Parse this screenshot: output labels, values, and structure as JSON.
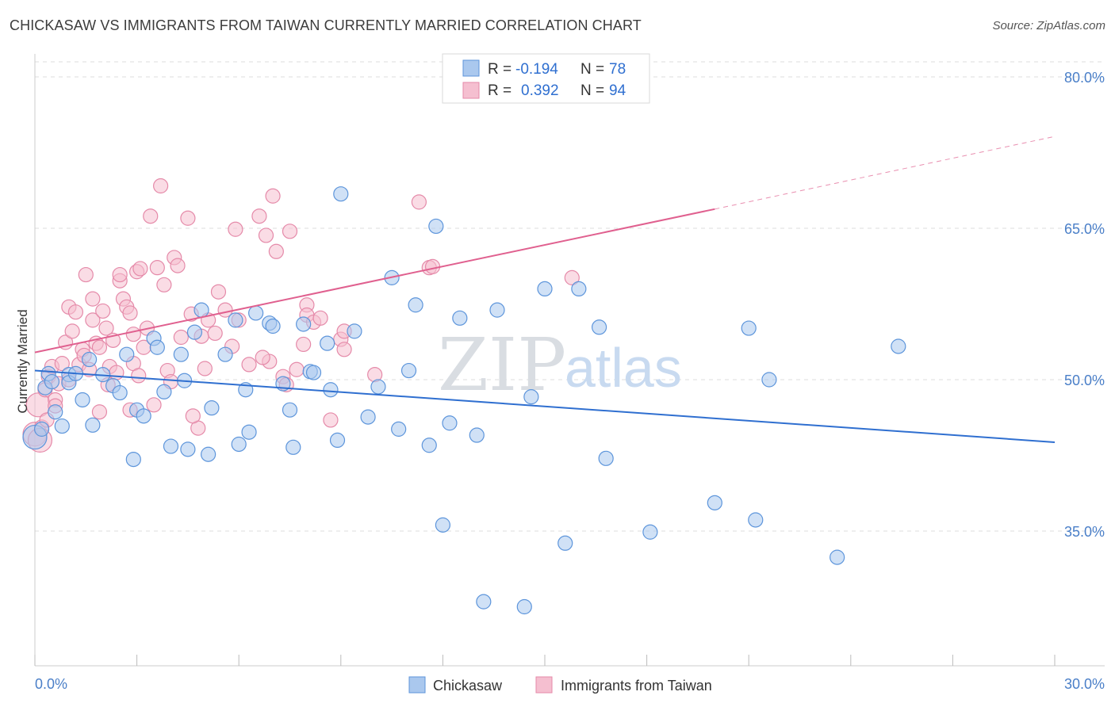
{
  "title": "CHICKASAW VS IMMIGRANTS FROM TAIWAN CURRENTLY MARRIED CORRELATION CHART",
  "source": "Source: ZipAtlas.com",
  "watermark": {
    "zip": "ZIP",
    "atlas": "atlas"
  },
  "legend": {
    "rows": [
      {
        "r_label": "R =",
        "r_value": "-0.194",
        "n_label": "N =",
        "n_value": "78"
      },
      {
        "r_label": "R =",
        "r_value": "0.392",
        "n_label": "N =",
        "n_value": "94"
      }
    ]
  },
  "bottom_legend": [
    "Chickasaw",
    "Immigrants from Taiwan"
  ],
  "colors": {
    "blue_fill": "#aac8ee",
    "blue_stroke": "#5d95db",
    "blue_line": "#2f6fd0",
    "pink_fill": "#f5bfd0",
    "pink_stroke": "#e58aa9",
    "pink_line": "#e0608f",
    "grid": "#dcdcdc",
    "tick_label": "#4a7fc8"
  },
  "chart_data": {
    "type": "scatter",
    "title": "CHICKASAW VS IMMIGRANTS FROM TAIWAN CURRENTLY MARRIED CORRELATION CHART",
    "xlabel": "",
    "ylabel": "Currently Married",
    "xlim": [
      0,
      30
    ],
    "ylim": [
      20,
      83
    ],
    "x_tick_labels": [
      "0.0%",
      "30.0%"
    ],
    "y_ticks": [
      35,
      50,
      65,
      80
    ],
    "y_tick_labels": [
      "35.0%",
      "50.0%",
      "65.0%",
      "80.0%"
    ],
    "grid": true,
    "legend_position": "top-center",
    "series": [
      {
        "name": "Chickasaw",
        "trend": {
          "x0": 0,
          "y0": 50.9,
          "x1": 30,
          "y1": 43.8
        },
        "points": [
          [
            0.0,
            44.3
          ],
          [
            0.3,
            49.2
          ],
          [
            0.4,
            50.6
          ],
          [
            0.5,
            49.8
          ],
          [
            0.6,
            46.8
          ],
          [
            0.8,
            45.4
          ],
          [
            1.0,
            50.5
          ],
          [
            1.0,
            49.7
          ],
          [
            1.4,
            48.0
          ],
          [
            1.7,
            45.5
          ],
          [
            1.6,
            52.0
          ],
          [
            2.0,
            50.5
          ],
          [
            2.3,
            49.4
          ],
          [
            2.5,
            48.7
          ],
          [
            2.7,
            52.5
          ],
          [
            2.9,
            42.1
          ],
          [
            3.0,
            47.0
          ],
          [
            3.2,
            46.4
          ],
          [
            3.5,
            54.1
          ],
          [
            3.6,
            53.2
          ],
          [
            3.8,
            48.8
          ],
          [
            4.0,
            43.4
          ],
          [
            4.3,
            52.5
          ],
          [
            4.4,
            49.9
          ],
          [
            4.5,
            43.1
          ],
          [
            4.7,
            54.7
          ],
          [
            4.9,
            56.9
          ],
          [
            5.1,
            42.6
          ],
          [
            5.2,
            47.2
          ],
          [
            5.6,
            52.5
          ],
          [
            5.9,
            55.9
          ],
          [
            6.0,
            43.6
          ],
          [
            6.2,
            49.0
          ],
          [
            6.3,
            44.8
          ],
          [
            6.5,
            56.6
          ],
          [
            6.9,
            55.6
          ],
          [
            7.0,
            55.3
          ],
          [
            7.3,
            49.6
          ],
          [
            7.5,
            47.0
          ],
          [
            7.6,
            43.3
          ],
          [
            7.9,
            55.5
          ],
          [
            8.1,
            50.8
          ],
          [
            8.2,
            50.7
          ],
          [
            8.6,
            53.6
          ],
          [
            8.7,
            49.0
          ],
          [
            8.9,
            44.0
          ],
          [
            9.0,
            68.4
          ],
          [
            9.4,
            54.8
          ],
          [
            9.8,
            46.3
          ],
          [
            10.1,
            49.3
          ],
          [
            10.5,
            60.1
          ],
          [
            10.7,
            45.1
          ],
          [
            11.0,
            50.9
          ],
          [
            11.2,
            57.4
          ],
          [
            11.6,
            43.5
          ],
          [
            11.8,
            65.2
          ],
          [
            12.0,
            35.6
          ],
          [
            12.2,
            45.7
          ],
          [
            12.5,
            56.1
          ],
          [
            13.0,
            44.5
          ],
          [
            13.2,
            28.0
          ],
          [
            13.6,
            56.9
          ],
          [
            14.4,
            27.5
          ],
          [
            14.6,
            48.3
          ],
          [
            15.0,
            59.0
          ],
          [
            15.6,
            33.8
          ],
          [
            16.0,
            59.0
          ],
          [
            16.6,
            55.2
          ],
          [
            16.8,
            42.2
          ],
          [
            18.1,
            34.9
          ],
          [
            20.0,
            37.8
          ],
          [
            21.0,
            55.1
          ],
          [
            21.2,
            36.1
          ],
          [
            21.6,
            50.0
          ],
          [
            23.6,
            32.4
          ],
          [
            25.4,
            53.3
          ],
          [
            0.2,
            45.1
          ],
          [
            1.2,
            50.6
          ]
        ]
      },
      {
        "name": "Immigrants from Taiwan",
        "trend": {
          "x0": 0,
          "y0": 52.7,
          "x1": 20.0,
          "y1": 66.9,
          "x_dash_end": 30,
          "y_dash_end": 74.1
        },
        "points": [
          [
            0.0,
            44.6
          ],
          [
            0.1,
            47.5
          ],
          [
            0.2,
            45.3
          ],
          [
            0.3,
            49.0
          ],
          [
            0.4,
            50.3
          ],
          [
            0.5,
            51.3
          ],
          [
            0.6,
            48.0
          ],
          [
            0.6,
            47.4
          ],
          [
            0.7,
            49.6
          ],
          [
            0.8,
            51.6
          ],
          [
            0.9,
            53.7
          ],
          [
            1.0,
            57.2
          ],
          [
            1.0,
            50.0
          ],
          [
            1.1,
            54.8
          ],
          [
            1.2,
            56.7
          ],
          [
            1.3,
            51.5
          ],
          [
            1.4,
            53.0
          ],
          [
            1.5,
            60.4
          ],
          [
            1.6,
            51.0
          ],
          [
            1.7,
            58.0
          ],
          [
            1.7,
            55.9
          ],
          [
            1.8,
            53.6
          ],
          [
            1.9,
            53.2
          ],
          [
            2.0,
            56.8
          ],
          [
            2.1,
            55.1
          ],
          [
            2.2,
            51.3
          ],
          [
            2.3,
            53.9
          ],
          [
            2.4,
            50.7
          ],
          [
            2.5,
            59.8
          ],
          [
            2.5,
            60.4
          ],
          [
            2.6,
            58.0
          ],
          [
            2.7,
            57.2
          ],
          [
            2.8,
            56.6
          ],
          [
            2.9,
            54.5
          ],
          [
            2.9,
            51.6
          ],
          [
            3.0,
            60.7
          ],
          [
            3.1,
            61.0
          ],
          [
            3.2,
            53.2
          ],
          [
            3.3,
            55.1
          ],
          [
            3.4,
            66.2
          ],
          [
            3.5,
            47.5
          ],
          [
            3.6,
            61.1
          ],
          [
            3.7,
            69.2
          ],
          [
            3.8,
            59.4
          ],
          [
            3.9,
            50.9
          ],
          [
            4.0,
            49.8
          ],
          [
            4.1,
            62.1
          ],
          [
            4.2,
            61.3
          ],
          [
            4.3,
            54.2
          ],
          [
            4.5,
            66.0
          ],
          [
            4.6,
            56.5
          ],
          [
            4.8,
            45.2
          ],
          [
            4.9,
            54.3
          ],
          [
            5.0,
            51.1
          ],
          [
            5.1,
            55.9
          ],
          [
            5.3,
            54.6
          ],
          [
            5.4,
            58.7
          ],
          [
            5.6,
            56.9
          ],
          [
            5.9,
            64.9
          ],
          [
            6.0,
            55.9
          ],
          [
            6.3,
            51.5
          ],
          [
            6.6,
            66.2
          ],
          [
            6.8,
            64.3
          ],
          [
            6.9,
            51.8
          ],
          [
            7.0,
            68.2
          ],
          [
            7.1,
            62.7
          ],
          [
            7.3,
            50.3
          ],
          [
            7.4,
            49.5
          ],
          [
            7.5,
            64.7
          ],
          [
            7.7,
            51.0
          ],
          [
            8.0,
            57.4
          ],
          [
            8.0,
            56.4
          ],
          [
            8.2,
            55.7
          ],
          [
            8.4,
            56.1
          ],
          [
            8.7,
            46.0
          ],
          [
            9.0,
            54.0
          ],
          [
            9.1,
            54.8
          ],
          [
            10.0,
            50.5
          ],
          [
            11.3,
            67.6
          ],
          [
            11.6,
            61.1
          ],
          [
            11.7,
            61.2
          ],
          [
            15.8,
            60.1
          ],
          [
            0.15,
            44.0
          ],
          [
            0.35,
            46.0
          ],
          [
            1.45,
            52.4
          ],
          [
            2.15,
            49.5
          ],
          [
            3.05,
            50.4
          ],
          [
            4.65,
            46.4
          ],
          [
            5.8,
            53.3
          ],
          [
            6.7,
            52.2
          ],
          [
            7.9,
            53.5
          ],
          [
            9.1,
            53.0
          ],
          [
            2.8,
            47.0
          ],
          [
            1.9,
            46.8
          ]
        ]
      }
    ]
  }
}
